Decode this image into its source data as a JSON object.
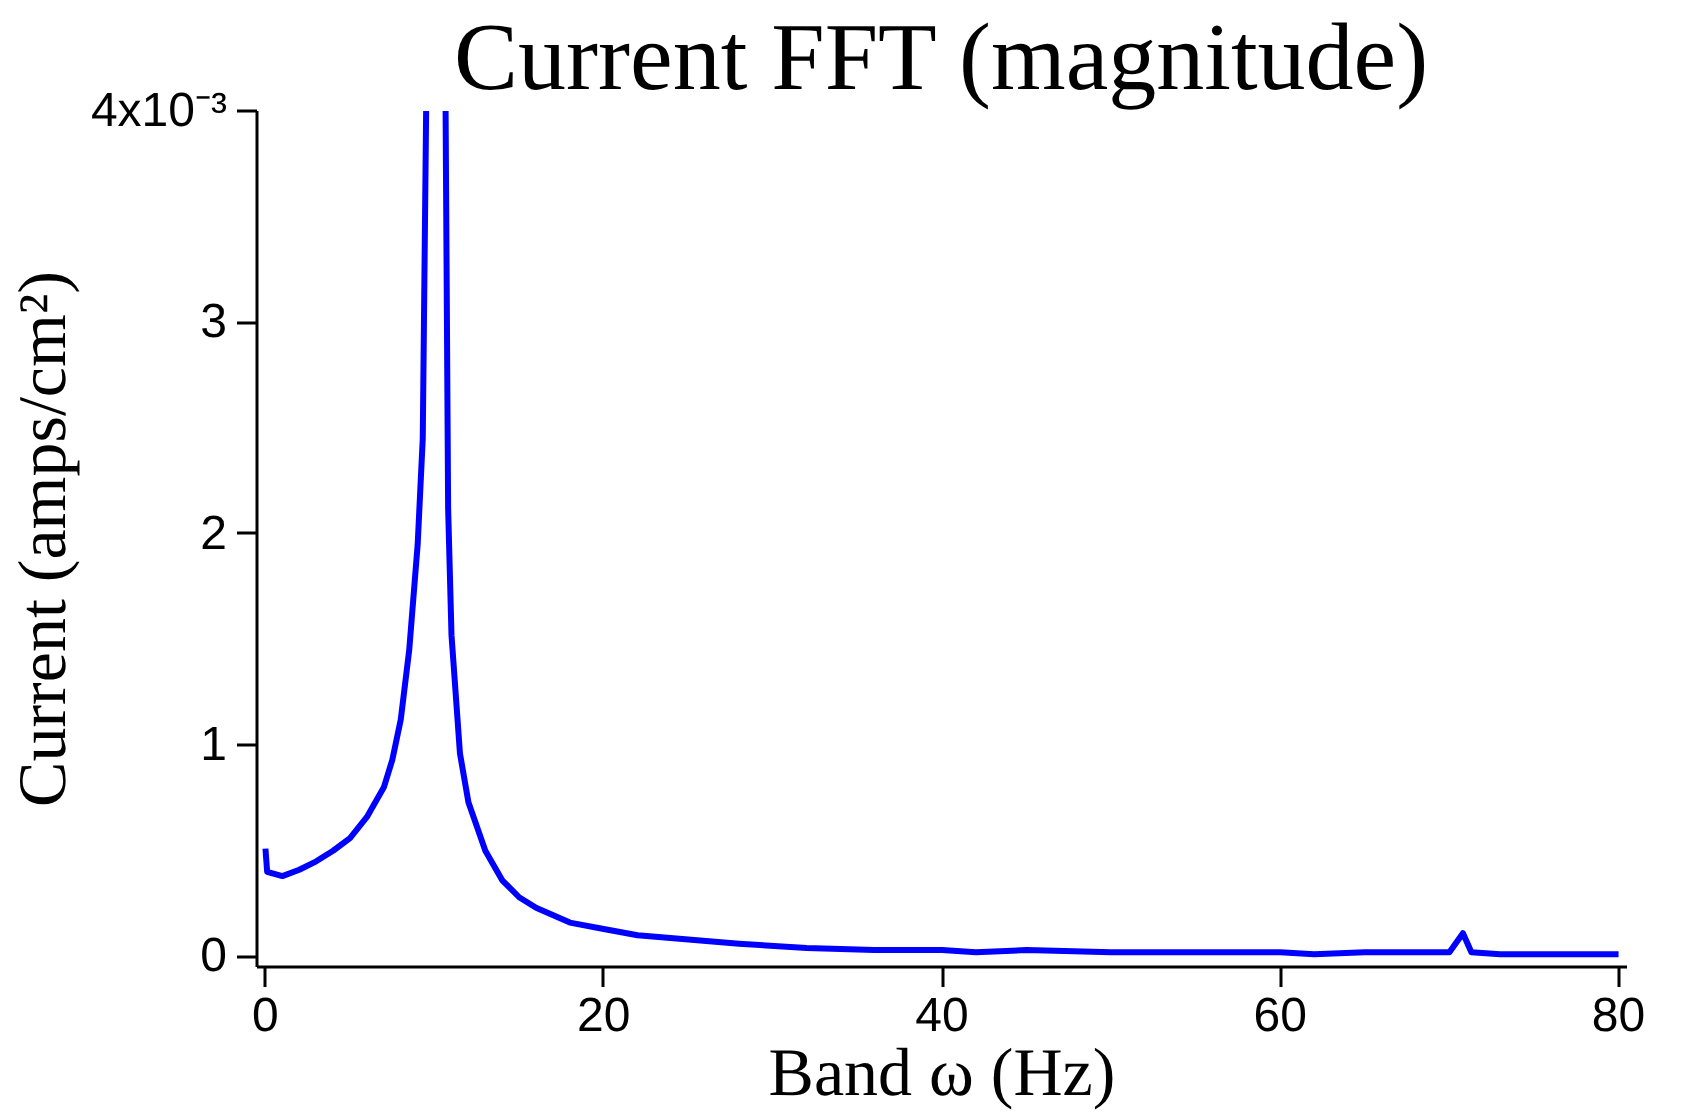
{
  "chart_data": {
    "type": "line",
    "title": "Current FFT (magnitude)",
    "xlabel": "Band ω (Hz)",
    "ylabel": "Current (amps/cm²)",
    "x": [
      0,
      0.1,
      1,
      2,
      3,
      4,
      5,
      6,
      7,
      7.5,
      8,
      8.5,
      9,
      9.3,
      9.5,
      10,
      10.65,
      10.8,
      11,
      11.5,
      12,
      13,
      14,
      15,
      16,
      18,
      20,
      22,
      25,
      28,
      32,
      36,
      40,
      42,
      45,
      50,
      55,
      60,
      62,
      65,
      68,
      70,
      70.8,
      71.3,
      73,
      75,
      77,
      80
    ],
    "series": [
      {
        "color": "#0000ff",
        "values": [
          0.51,
          0.4,
          0.38,
          0.41,
          0.45,
          0.5,
          0.56,
          0.66,
          0.8,
          0.93,
          1.12,
          1.45,
          1.95,
          2.45,
          4,
          null,
          4,
          2.12,
          1.52,
          0.96,
          0.73,
          0.5,
          0.36,
          0.28,
          0.23,
          0.16,
          0.13,
          0.1,
          0.08,
          0.06,
          0.04,
          0.03,
          0.03,
          0.02,
          0.03,
          0.02,
          0.02,
          0.02,
          0.01,
          0.02,
          0.02,
          0.02,
          0.11,
          0.02,
          0.01,
          0.01,
          0.01,
          0.01
        ]
      }
    ],
    "xlim": [
      -0.5,
      80.5
    ],
    "ylim": [
      -0.05,
      4
    ],
    "xticks": [
      0,
      20,
      40,
      60,
      80
    ],
    "yticks": [
      0,
      1,
      2,
      3,
      {
        "value": 4,
        "label": null
      }
    ],
    "annotations": [
      "4x10⁻³"
    ],
    "grid": false,
    "line_style": "solid",
    "marker": "none"
  }
}
